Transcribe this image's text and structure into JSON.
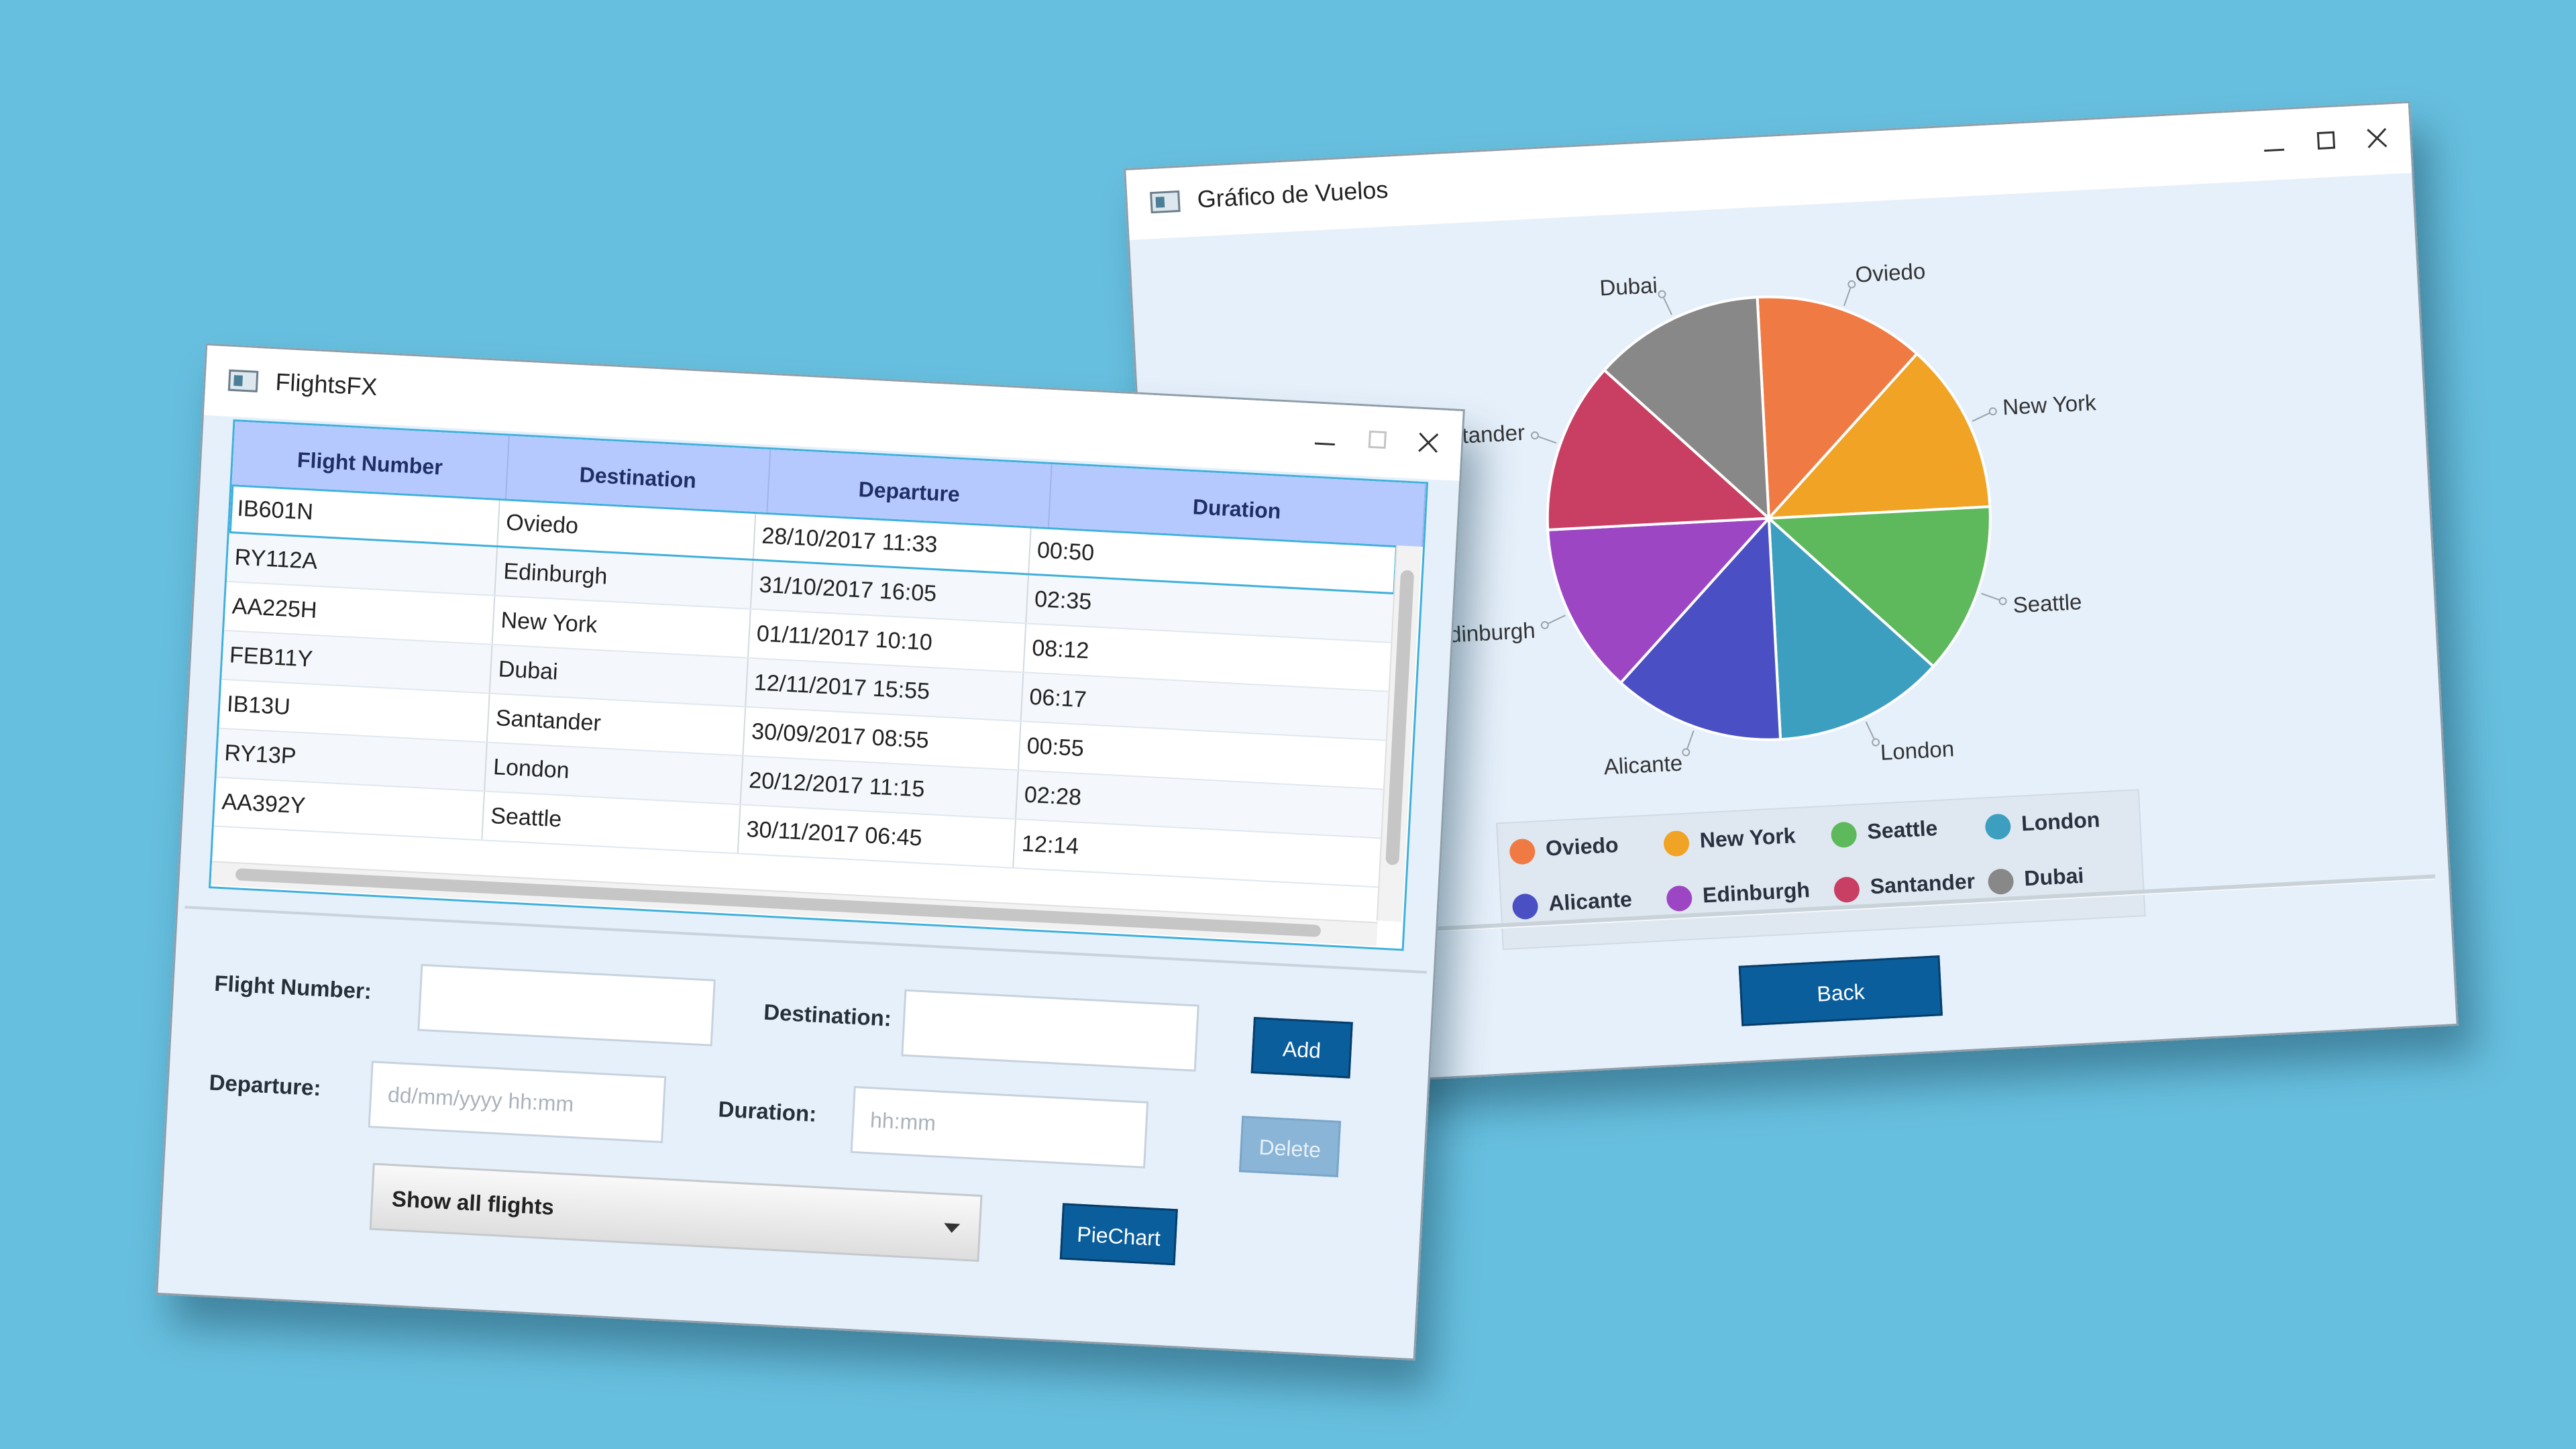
{
  "flights_window": {
    "title": "FlightsFX",
    "table": {
      "columns": [
        "Flight Number",
        "Destination",
        "Departure",
        "Duration"
      ],
      "rows": [
        [
          "IB601N",
          "Oviedo",
          "28/10/2017 11:33",
          "00:50"
        ],
        [
          "RY112A",
          "Edinburgh",
          "31/10/2017 16:05",
          "02:35"
        ],
        [
          "AA225H",
          "New York",
          "01/11/2017 10:10",
          "08:12"
        ],
        [
          "FEB11Y",
          "Dubai",
          "12/11/2017 15:55",
          "06:17"
        ],
        [
          "IB13U",
          "Santander",
          "30/09/2017 08:55",
          "00:55"
        ],
        [
          "RY13P",
          "London",
          "20/12/2017 11:15",
          "02:28"
        ],
        [
          "AA392Y",
          "Seattle",
          "30/11/2017 06:45",
          "12:14"
        ]
      ]
    },
    "form": {
      "flight_number_label": "Flight Number:",
      "destination_label": "Destination:",
      "departure_label": "Departure:",
      "departure_placeholder": "dd/mm/yyyy hh:mm",
      "duration_label": "Duration:",
      "duration_placeholder": "hh:mm",
      "add_label": "Add",
      "delete_label": "Delete",
      "filter_selected": "Show all flights",
      "piechart_label": "PieChart"
    }
  },
  "chart_window": {
    "title": "Gráfico de Vuelos",
    "back_label": "Back",
    "legend": [
      {
        "name": "Oviedo",
        "color": "#f07a44"
      },
      {
        "name": "New York",
        "color": "#f0a325"
      },
      {
        "name": "Seattle",
        "color": "#5eb85c"
      },
      {
        "name": "London",
        "color": "#3d9fc0"
      },
      {
        "name": "Alicante",
        "color": "#4b4fc4"
      },
      {
        "name": "Edinburgh",
        "color": "#9c46c4"
      },
      {
        "name": "Santander",
        "color": "#c83f63"
      },
      {
        "name": "Dubai",
        "color": "#888888"
      }
    ]
  },
  "chart_data": {
    "type": "pie",
    "title": "",
    "labels": [
      "Oviedo",
      "New York",
      "Seattle",
      "London",
      "Alicante",
      "Edinburgh",
      "Santander",
      "Dubai"
    ],
    "values": [
      1,
      1,
      1,
      1,
      1,
      1,
      1,
      1
    ],
    "colors": [
      "#f07a44",
      "#f0a325",
      "#5eb85c",
      "#3d9fc0",
      "#4b4fc4",
      "#9c46c4",
      "#c83f63",
      "#888888"
    ],
    "legend_position": "bottom"
  }
}
